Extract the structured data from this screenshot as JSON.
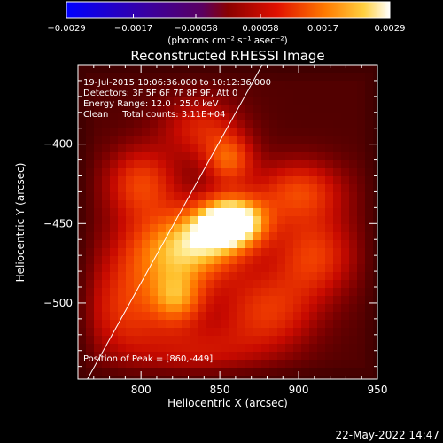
{
  "chart_data": {
    "type": "heatmap",
    "title": "Reconstructed RHESSI Image",
    "xlabel": "Heliocentric X (arcsec)",
    "ylabel": "Heliocentric Y (arcsec)",
    "xlim": [
      760,
      950
    ],
    "ylim": [
      -548,
      -350
    ],
    "xticks": [
      800,
      850,
      900,
      950
    ],
    "yticks": [
      -400,
      -450,
      -500
    ],
    "colorbar": {
      "range": [
        -0.0029,
        0.0029
      ],
      "tick_labels": [
        "-0.0029",
        "-0.0017",
        "-0.00058",
        "0.00058",
        "0.0017",
        "0.0029"
      ],
      "tick_values": [
        -0.0029,
        -0.0017,
        -0.00058,
        0.00058,
        0.0017,
        0.0029
      ],
      "unit_label": "(photons cm⁻² s⁻¹ asec⁻²)"
    },
    "annotations": [
      "19-Jul-2015 10:06:36.000 to 10:12:36.000",
      "Detectors: 3F 5F 6F 7F 8F 9F, Att 0",
      "Energy Range: 12.0 - 25.0 keV",
      "Clean     Total counts: 3.11E+04"
    ],
    "peak_label": "Position of Peak = [860,-449]",
    "peak": {
      "x": 860,
      "y": -449
    },
    "limb_line": [
      [
        766,
        -548
      ],
      [
        877,
        -350
      ]
    ],
    "sources": [
      {
        "x": 858,
        "y": -449,
        "amp": 1.0,
        "sx": 15,
        "sy": 11
      },
      {
        "x": 840,
        "y": -462,
        "amp": 0.55,
        "sx": 20,
        "sy": 16
      },
      {
        "x": 812,
        "y": -470,
        "amp": 0.45,
        "sx": 22,
        "sy": 18
      },
      {
        "x": 823,
        "y": -498,
        "amp": 0.48,
        "sx": 12,
        "sy": 12
      },
      {
        "x": 856,
        "y": -410,
        "amp": 0.45,
        "sx": 11,
        "sy": 11
      },
      {
        "x": 800,
        "y": -425,
        "amp": 0.42,
        "sx": 16,
        "sy": 16
      },
      {
        "x": 900,
        "y": -430,
        "amp": 0.42,
        "sx": 20,
        "sy": 14
      },
      {
        "x": 910,
        "y": -470,
        "amp": 0.4,
        "sx": 18,
        "sy": 18
      },
      {
        "x": 838,
        "y": -390,
        "amp": 0.32,
        "sx": 18,
        "sy": 14
      },
      {
        "x": 790,
        "y": -505,
        "amp": 0.35,
        "sx": 18,
        "sy": 20
      },
      {
        "x": 880,
        "y": -505,
        "amp": 0.38,
        "sx": 22,
        "sy": 18
      },
      {
        "x": 835,
        "y": -530,
        "amp": 0.25,
        "sx": 28,
        "sy": 12
      }
    ]
  },
  "footer": {
    "timestamp": "22-May-2022 14:47"
  }
}
